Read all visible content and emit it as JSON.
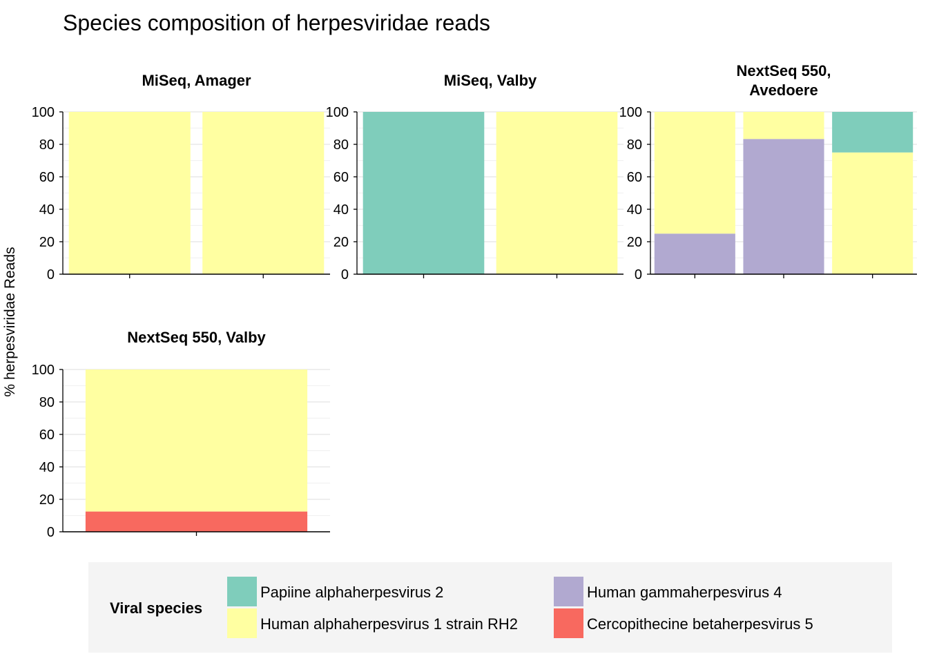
{
  "chart_data": {
    "type": "bar",
    "subtype": "stacked-percent-facets",
    "title": "Species composition of herpesviridae reads",
    "xlabel": "",
    "ylabel": "% herpesviridae Reads",
    "ylim": [
      0,
      100
    ],
    "yticks": [
      0,
      20,
      40,
      60,
      80,
      100
    ],
    "grid": true,
    "legend_position": "bottom",
    "legend_title": "Viral species",
    "species": [
      {
        "name": "Papiine alphaherpesvirus 2",
        "color": "#7fcdbb"
      },
      {
        "name": "Human alphaherpesvirus 1 strain RH2",
        "color": "#ffffa1"
      },
      {
        "name": "Human gammaherpesvirus 4",
        "color": "#b1a9d0"
      },
      {
        "name": "Cercopithecine betaherpesvirus 5",
        "color": "#f8695f"
      }
    ],
    "facets": [
      {
        "title_lines": [
          "MiSeq, Amager"
        ],
        "bars": [
          {
            "segments": [
              {
                "species": "Human alphaherpesvirus 1 strain RH2",
                "value": 100
              }
            ]
          },
          {
            "segments": [
              {
                "species": "Human alphaherpesvirus 1 strain RH2",
                "value": 100
              }
            ]
          }
        ]
      },
      {
        "title_lines": [
          "MiSeq, Valby"
        ],
        "bars": [
          {
            "segments": [
              {
                "species": "Papiine alphaherpesvirus 2",
                "value": 100
              }
            ]
          },
          {
            "segments": [
              {
                "species": "Human alphaherpesvirus 1 strain RH2",
                "value": 100
              }
            ]
          }
        ]
      },
      {
        "title_lines": [
          "NextSeq 550,",
          "Avedoere"
        ],
        "bars": [
          {
            "segments": [
              {
                "species": "Human gammaherpesvirus 4",
                "value": 25
              },
              {
                "species": "Human alphaherpesvirus 1 strain RH2",
                "value": 75
              }
            ]
          },
          {
            "segments": [
              {
                "species": "Human gammaherpesvirus 4",
                "value": 83.3
              },
              {
                "species": "Human alphaherpesvirus 1 strain RH2",
                "value": 16.7
              }
            ]
          },
          {
            "segments": [
              {
                "species": "Human alphaherpesvirus 1 strain RH2",
                "value": 75
              },
              {
                "species": "Papiine alphaherpesvirus 2",
                "value": 25
              }
            ]
          }
        ]
      },
      {
        "title_lines": [
          "NextSeq 550, Valby"
        ],
        "bars": [
          {
            "segments": [
              {
                "species": "Cercopithecine betaherpesvirus 5",
                "value": 12.5
              },
              {
                "species": "Human alphaherpesvirus 1 strain RH2",
                "value": 87.5
              }
            ]
          }
        ]
      }
    ]
  }
}
